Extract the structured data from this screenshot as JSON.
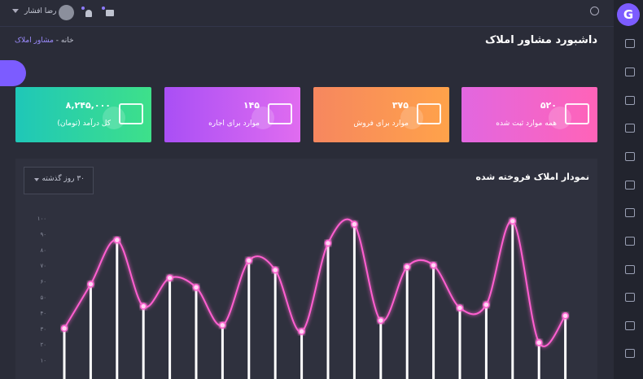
{
  "topbar": {
    "user_name": "رضا افشار"
  },
  "sidebar": {
    "logo": "G"
  },
  "breadcrumb": {
    "home": "خانه",
    "separator": "-",
    "current": "مشاور املاک"
  },
  "page_title": "داشبورد مشاور املاک",
  "cards": [
    {
      "value": "۸,۲۴۵,۰۰۰",
      "label": "کل درآمد (تومان)"
    },
    {
      "value": "۱۴۵",
      "label": "موارد برای اجاره"
    },
    {
      "value": "۳۷۵",
      "label": "موارد برای فروش"
    },
    {
      "value": "۵۲۰",
      "label": "همه موارد ثبت شده"
    }
  ],
  "chart_data": {
    "type": "line",
    "title": "نمودار املاک فروخته شده",
    "filter": "۳۰ روز گذشته",
    "categories": [
      null,
      null,
      null,
      null,
      null,
      null,
      null,
      null,
      null,
      null,
      null,
      null,
      null,
      null,
      null,
      null,
      null,
      null,
      null,
      null
    ],
    "values": [
      30,
      58,
      86,
      44,
      62,
      56,
      32,
      73,
      67,
      28,
      84,
      96,
      35,
      69,
      70,
      43,
      45,
      98,
      21,
      38
    ],
    "color": "#ff5ed0",
    "stem_color": "#ffffff",
    "ylim": [
      0,
      100
    ],
    "yticks": [
      {
        "value": 10,
        "label": "۱۰"
      },
      {
        "value": 20,
        "label": "۲۰"
      },
      {
        "value": 30,
        "label": "۳۰"
      },
      {
        "value": 40,
        "label": "۴۰"
      },
      {
        "value": 50,
        "label": "۵۰"
      },
      {
        "value": 60,
        "label": "۶۰"
      },
      {
        "value": 70,
        "label": "۷۰"
      },
      {
        "value": 80,
        "label": "۸۰"
      },
      {
        "value": 90,
        "label": "۹۰"
      },
      {
        "value": 100,
        "label": "۱۰۰"
      }
    ],
    "grid": false
  }
}
